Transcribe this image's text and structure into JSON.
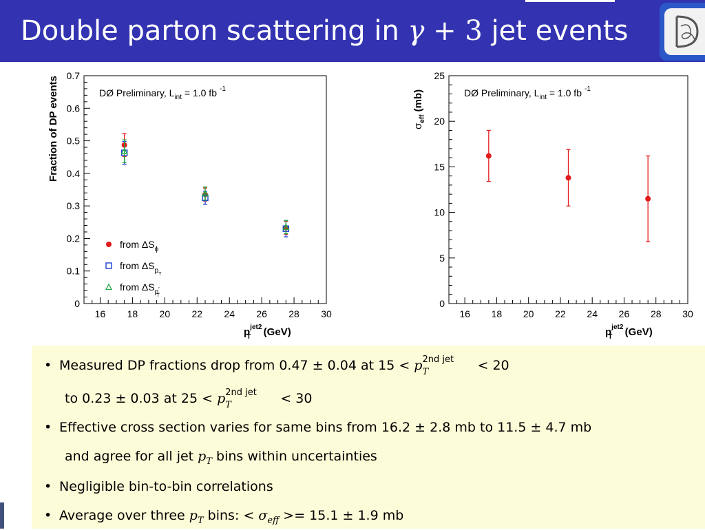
{
  "slide": {
    "title_main": "Double parton scattering in ",
    "title_gamma": "γ",
    "title_plus": " + 3 ",
    "title_end": "jet events"
  },
  "chart_data": [
    {
      "type": "scatter",
      "annotation": "DØ Preliminary,  L",
      "annotation_sub": "int",
      "annotation_rest": " = 1.0 fb",
      "annotation_sup": "-1",
      "ylabel": "Fraction of DP events",
      "xlabel_main": "p",
      "xlabel_sup": "jet2",
      "xlabel_sub": "T",
      "xlabel_unit": " (GeV)",
      "xlim": [
        15,
        30
      ],
      "ylim": [
        0,
        0.7
      ],
      "xticks": [
        "16",
        "18",
        "20",
        "22",
        "24",
        "26",
        "28",
        "30"
      ],
      "yticks": [
        "0",
        "0.1",
        "0.2",
        "0.3",
        "0.4",
        "0.5",
        "0.6",
        "0.7"
      ],
      "x": [
        17.5,
        22.5,
        27.5
      ],
      "series": [
        {
          "name": "from ΔS",
          "name_sub": "ϕ",
          "marker": "circle",
          "color": "#e31a1c",
          "values": [
            0.487,
            0.335,
            0.233
          ],
          "err": [
            0.035,
            0.02,
            0.02
          ]
        },
        {
          "name": "from ΔS",
          "name_sub": "pT",
          "marker": "square",
          "color": "#1f3fd6",
          "values": [
            0.463,
            0.325,
            0.23
          ],
          "err": [
            0.035,
            0.02,
            0.025
          ]
        },
        {
          "name": "from ΔS",
          "name_sub": "p'T",
          "marker": "triangle",
          "color": "#22a845",
          "values": [
            0.468,
            0.338,
            0.235
          ],
          "err": [
            0.035,
            0.02,
            0.02
          ]
        }
      ]
    },
    {
      "type": "scatter",
      "annotation": "DØ Preliminary,  L",
      "annotation_sub": "int",
      "annotation_rest": " = 1.0 fb",
      "annotation_sup": "-1",
      "ylabel_main": "σ",
      "ylabel_sub": "eff",
      "ylabel_unit": " (mb)",
      "xlabel_main": "p",
      "xlabel_sup": "jet2",
      "xlabel_sub": "T",
      "xlabel_unit": " (GeV)",
      "xlim": [
        15,
        30
      ],
      "ylim": [
        0,
        25
      ],
      "xticks": [
        "16",
        "18",
        "20",
        "22",
        "24",
        "26",
        "28",
        "30"
      ],
      "yticks": [
        "0",
        "5",
        "10",
        "15",
        "20",
        "25"
      ],
      "x": [
        17.5,
        22.5,
        27.5
      ],
      "series": [
        {
          "marker": "circle",
          "color": "#e31a1c",
          "values": [
            16.2,
            13.8,
            11.5
          ],
          "err": [
            2.8,
            3.1,
            4.7
          ]
        }
      ]
    }
  ],
  "summary": {
    "b1a": "Measured DP fractions drop from 0.47 ± 0.04 at 15 < ",
    "b1b": " < 20",
    "b1c_pre": "to 0.23 ± 0.03 at 25 < ",
    "b1c_post": " < 30",
    "p": "p",
    "sub_T": "T",
    "sup_2nd": "2nd jet",
    "b2a": "Effective cross section varies for same bins from 16.2 ± 2.8 mb to 11.5 ± 4.7 mb",
    "b2b_pre": "and agree for all jet ",
    "b2b_post": " bins within uncertainties",
    "b3": "Negligible bin-to-bin correlations",
    "b4_pre": "Average over three ",
    "b4_mid": " bins: < ",
    "sigma": "σ",
    "eff": "eff",
    "b4_post": " >= 15.1 ± 1.9 mb",
    "bullet_char": "•"
  }
}
